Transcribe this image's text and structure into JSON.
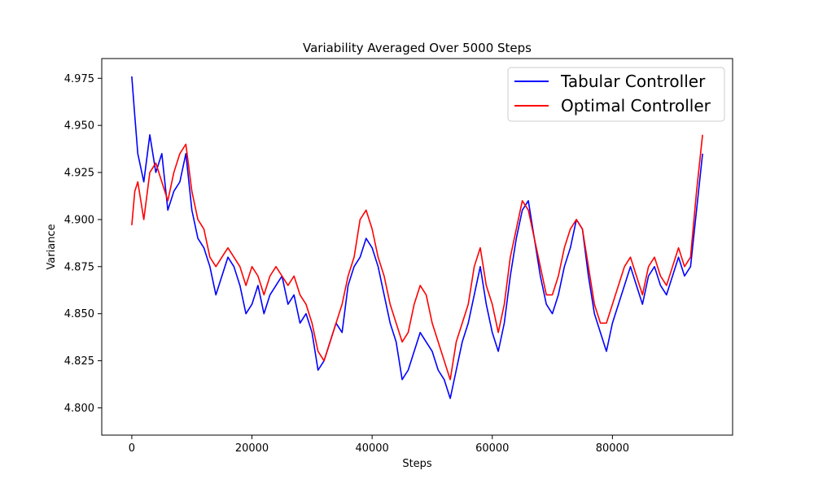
{
  "chart_data": {
    "type": "line",
    "title": "Variability Averaged Over 5000 Steps",
    "xlabel": "Steps",
    "ylabel": "Variance",
    "xlim": [
      -5000,
      100000
    ],
    "ylim": [
      4.7855,
      4.9855
    ],
    "xticks": [
      0,
      20000,
      40000,
      60000,
      80000
    ],
    "xtick_labels": [
      "0",
      "20000",
      "40000",
      "60000",
      "80000"
    ],
    "yticks": [
      4.8,
      4.825,
      4.85,
      4.875,
      4.9,
      4.925,
      4.95,
      4.975
    ],
    "ytick_labels": [
      "4.800",
      "4.825",
      "4.850",
      "4.875",
      "4.900",
      "4.925",
      "4.950",
      "4.975"
    ],
    "grid": false,
    "legend_position": "top-right",
    "series": [
      {
        "name": "Tabular Controller",
        "color": "#0000ff",
        "x": [
          0,
          500,
          1000,
          2000,
          3000,
          4000,
          5000,
          6000,
          7000,
          8000,
          9000,
          10000,
          11000,
          12000,
          13000,
          14000,
          15000,
          16000,
          17000,
          18000,
          19000,
          20000,
          21000,
          22000,
          23000,
          24000,
          25000,
          26000,
          27000,
          28000,
          29000,
          30000,
          31000,
          32000,
          33000,
          34000,
          35000,
          36000,
          37000,
          38000,
          39000,
          40000,
          41000,
          42000,
          43000,
          44000,
          45000,
          46000,
          47000,
          48000,
          49000,
          50000,
          51000,
          52000,
          53000,
          54000,
          55000,
          56000,
          57000,
          58000,
          59000,
          60000,
          61000,
          62000,
          63000,
          64000,
          65000,
          66000,
          67000,
          68000,
          69000,
          70000,
          71000,
          72000,
          73000,
          74000,
          75000,
          76000,
          77000,
          78000,
          79000,
          80000,
          81000,
          82000,
          83000,
          84000,
          85000,
          86000,
          87000,
          88000,
          89000,
          90000,
          91000,
          92000,
          93000,
          94000,
          95000
        ],
        "y": [
          4.976,
          4.955,
          4.935,
          4.92,
          4.945,
          4.925,
          4.935,
          4.905,
          4.915,
          4.92,
          4.935,
          4.905,
          4.89,
          4.885,
          4.875,
          4.86,
          4.87,
          4.88,
          4.875,
          4.865,
          4.85,
          4.855,
          4.865,
          4.85,
          4.86,
          4.865,
          4.87,
          4.855,
          4.86,
          4.845,
          4.85,
          4.84,
          4.82,
          4.825,
          4.835,
          4.845,
          4.84,
          4.865,
          4.875,
          4.88,
          4.89,
          4.885,
          4.875,
          4.86,
          4.845,
          4.835,
          4.815,
          4.82,
          4.83,
          4.84,
          4.835,
          4.83,
          4.82,
          4.815,
          4.805,
          4.82,
          4.835,
          4.845,
          4.86,
          4.875,
          4.855,
          4.84,
          4.83,
          4.845,
          4.87,
          4.89,
          4.905,
          4.91,
          4.89,
          4.87,
          4.855,
          4.85,
          4.86,
          4.875,
          4.885,
          4.9,
          4.895,
          4.87,
          4.85,
          4.84,
          4.83,
          4.845,
          4.855,
          4.865,
          4.875,
          4.865,
          4.855,
          4.87,
          4.875,
          4.865,
          4.86,
          4.87,
          4.88,
          4.87,
          4.875,
          4.905,
          4.935
        ]
      },
      {
        "name": "Optimal Controller",
        "color": "#ff0000",
        "x": [
          0,
          500,
          1000,
          2000,
          3000,
          4000,
          5000,
          6000,
          7000,
          8000,
          9000,
          10000,
          11000,
          12000,
          13000,
          14000,
          15000,
          16000,
          17000,
          18000,
          19000,
          20000,
          21000,
          22000,
          23000,
          24000,
          25000,
          26000,
          27000,
          28000,
          29000,
          30000,
          31000,
          32000,
          33000,
          34000,
          35000,
          36000,
          37000,
          38000,
          39000,
          40000,
          41000,
          42000,
          43000,
          44000,
          45000,
          46000,
          47000,
          48000,
          49000,
          50000,
          51000,
          52000,
          53000,
          54000,
          55000,
          56000,
          57000,
          58000,
          59000,
          60000,
          61000,
          62000,
          63000,
          64000,
          65000,
          66000,
          67000,
          68000,
          69000,
          70000,
          71000,
          72000,
          73000,
          74000,
          75000,
          76000,
          77000,
          78000,
          79000,
          80000,
          81000,
          82000,
          83000,
          84000,
          85000,
          86000,
          87000,
          88000,
          89000,
          90000,
          91000,
          92000,
          93000,
          94000,
          95000
        ],
        "y": [
          4.897,
          4.915,
          4.92,
          4.9,
          4.925,
          4.93,
          4.92,
          4.91,
          4.925,
          4.935,
          4.94,
          4.915,
          4.9,
          4.895,
          4.88,
          4.875,
          4.88,
          4.885,
          4.88,
          4.875,
          4.865,
          4.875,
          4.87,
          4.86,
          4.87,
          4.875,
          4.87,
          4.865,
          4.87,
          4.86,
          4.855,
          4.845,
          4.83,
          4.825,
          4.835,
          4.845,
          4.855,
          4.87,
          4.88,
          4.9,
          4.905,
          4.895,
          4.88,
          4.87,
          4.855,
          4.845,
          4.835,
          4.84,
          4.855,
          4.865,
          4.86,
          4.845,
          4.835,
          4.825,
          4.815,
          4.835,
          4.845,
          4.855,
          4.875,
          4.885,
          4.865,
          4.855,
          4.84,
          4.855,
          4.88,
          4.895,
          4.91,
          4.905,
          4.89,
          4.875,
          4.86,
          4.86,
          4.87,
          4.885,
          4.895,
          4.9,
          4.895,
          4.875,
          4.855,
          4.845,
          4.845,
          4.855,
          4.865,
          4.875,
          4.88,
          4.87,
          4.86,
          4.875,
          4.88,
          4.87,
          4.865,
          4.875,
          4.885,
          4.875,
          4.88,
          4.915,
          4.945
        ]
      }
    ]
  }
}
